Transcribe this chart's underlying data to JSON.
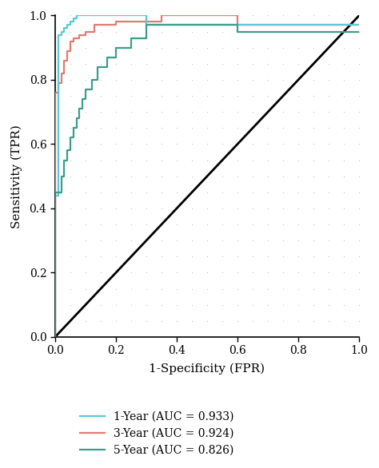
{
  "title": "",
  "xlabel": "1-Specificity (FPR)",
  "ylabel": "Sensitivity (TPR)",
  "xlim": [
    0.0,
    1.0
  ],
  "ylim": [
    0.0,
    1.0
  ],
  "xticks": [
    0.0,
    0.2,
    0.4,
    0.6,
    0.8,
    1.0
  ],
  "yticks": [
    0.0,
    0.2,
    0.4,
    0.6,
    0.8,
    1.0
  ],
  "background_color": "#ffffff",
  "grid_dot_color": "#888888",
  "diagonal_color": "#000000",
  "curve_1year_color": "#5bc8d4",
  "curve_3year_color": "#e07b72",
  "curve_5year_color": "#3a9e8a",
  "legend_labels": [
    "1-Year (AUC = 0.933)",
    "3-Year (AUC = 0.924)",
    "5-Year (AUC = 0.826)"
  ],
  "curve_1year_fpr": [
    0.0,
    0.0,
    0.0,
    0.0,
    0.0,
    0.01,
    0.01,
    0.01,
    0.01,
    0.02,
    0.02,
    0.03,
    0.03,
    0.04,
    0.04,
    0.05,
    0.05,
    0.06,
    0.06,
    0.07,
    0.07,
    0.08,
    0.08,
    0.3,
    0.3,
    0.6,
    0.6,
    1.0
  ],
  "curve_1year_tpr": [
    0.0,
    0.13,
    0.14,
    0.39,
    0.44,
    0.44,
    0.49,
    0.93,
    0.94,
    0.94,
    0.95,
    0.95,
    0.96,
    0.96,
    0.97,
    0.97,
    0.98,
    0.98,
    0.99,
    0.99,
    1.0,
    1.0,
    1.0,
    1.0,
    0.97,
    0.97,
    0.97,
    0.97
  ],
  "curve_3year_fpr": [
    0.0,
    0.0,
    0.0,
    0.0,
    0.01,
    0.01,
    0.02,
    0.02,
    0.03,
    0.03,
    0.04,
    0.04,
    0.05,
    0.05,
    0.06,
    0.06,
    0.08,
    0.08,
    0.1,
    0.1,
    0.13,
    0.13,
    0.2,
    0.2,
    0.35,
    0.35,
    0.6,
    0.6,
    1.0
  ],
  "curve_3year_tpr": [
    0.0,
    0.4,
    0.56,
    0.76,
    0.76,
    0.79,
    0.79,
    0.82,
    0.82,
    0.86,
    0.86,
    0.89,
    0.89,
    0.92,
    0.92,
    0.93,
    0.93,
    0.94,
    0.94,
    0.95,
    0.95,
    0.97,
    0.97,
    0.98,
    0.98,
    1.0,
    1.0,
    0.97,
    0.97
  ],
  "curve_5year_fpr": [
    0.0,
    0.0,
    0.0,
    0.02,
    0.02,
    0.03,
    0.03,
    0.04,
    0.04,
    0.05,
    0.05,
    0.06,
    0.06,
    0.07,
    0.07,
    0.08,
    0.08,
    0.09,
    0.09,
    0.1,
    0.1,
    0.12,
    0.12,
    0.14,
    0.14,
    0.17,
    0.17,
    0.2,
    0.2,
    0.25,
    0.25,
    0.3,
    0.3,
    0.6,
    0.6,
    1.0
  ],
  "curve_5year_tpr": [
    0.0,
    0.38,
    0.45,
    0.45,
    0.5,
    0.5,
    0.55,
    0.55,
    0.58,
    0.58,
    0.62,
    0.62,
    0.65,
    0.65,
    0.68,
    0.68,
    0.71,
    0.71,
    0.74,
    0.74,
    0.77,
    0.77,
    0.8,
    0.8,
    0.84,
    0.84,
    0.87,
    0.87,
    0.9,
    0.9,
    0.93,
    0.93,
    0.97,
    0.97,
    0.95,
    0.95
  ],
  "figsize": [
    4.74,
    5.86
  ],
  "dpi": 100,
  "font_family": "serif",
  "axis_fontsize": 11,
  "tick_fontsize": 10,
  "legend_fontsize": 10,
  "linewidth": 1.6
}
